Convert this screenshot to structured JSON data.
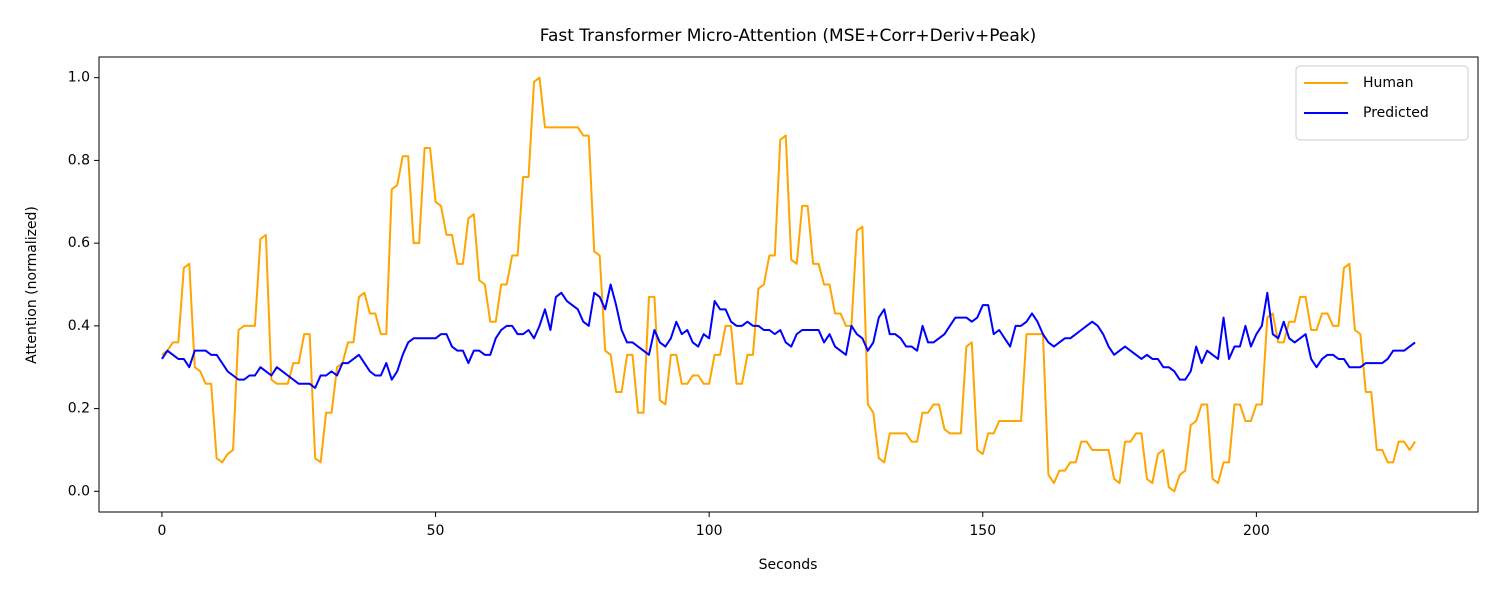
{
  "chart_data": {
    "type": "line",
    "title": "Fast Transformer Micro-Attention (MSE+Corr+Deriv+Peak)",
    "x_label": "Seconds",
    "y_label": "Attention (normalized)",
    "x": [
      0,
      1,
      2,
      3,
      4,
      5,
      6,
      7,
      8,
      9,
      10,
      11,
      12,
      13,
      14,
      15,
      16,
      17,
      18,
      19,
      20,
      21,
      22,
      23,
      24,
      25,
      26,
      27,
      28,
      29,
      30,
      31,
      32,
      33,
      34,
      35,
      36,
      37,
      38,
      39,
      40,
      41,
      42,
      43,
      44,
      45,
      46,
      47,
      48,
      49,
      50,
      51,
      52,
      53,
      54,
      55,
      56,
      57,
      58,
      59,
      60,
      61,
      62,
      63,
      64,
      65,
      66,
      67,
      68,
      69,
      70,
      71,
      72,
      73,
      74,
      75,
      76,
      77,
      78,
      79,
      80,
      81,
      82,
      83,
      84,
      85,
      86,
      87,
      88,
      89,
      90,
      91,
      92,
      93,
      94,
      95,
      96,
      97,
      98,
      99,
      100,
      101,
      102,
      103,
      104,
      105,
      106,
      107,
      108,
      109,
      110,
      111,
      112,
      113,
      114,
      115,
      116,
      117,
      118,
      119,
      120,
      121,
      122,
      123,
      124,
      125,
      126,
      127,
      128,
      129,
      130,
      131,
      132,
      133,
      134,
      135,
      136,
      137,
      138,
      139,
      140,
      141,
      142,
      143,
      144,
      145,
      146,
      147,
      148,
      149,
      150,
      151,
      152,
      153,
      154,
      155,
      156,
      157,
      158,
      159,
      160,
      161,
      162,
      163,
      164,
      165,
      166,
      167,
      168,
      169,
      170,
      171,
      172,
      173,
      174,
      175,
      176,
      177,
      178,
      179,
      180,
      181,
      182,
      183,
      184,
      185,
      186,
      187,
      188,
      189,
      190,
      191,
      192,
      193,
      194,
      195,
      196,
      197,
      198,
      199,
      200,
      201,
      202,
      203,
      204,
      205,
      206,
      207,
      208,
      209,
      210,
      211,
      212,
      213,
      214,
      215,
      216,
      217,
      218,
      219,
      220,
      221,
      222,
      223,
      224,
      225,
      226,
      227,
      228,
      229
    ],
    "series": [
      {
        "name": "Human",
        "color": "#ffa500",
        "values": [
          0.33,
          0.34,
          0.36,
          0.36,
          0.54,
          0.55,
          0.3,
          0.29,
          0.26,
          0.26,
          0.08,
          0.07,
          0.09,
          0.1,
          0.39,
          0.4,
          0.4,
          0.4,
          0.61,
          0.62,
          0.27,
          0.26,
          0.26,
          0.26,
          0.31,
          0.31,
          0.38,
          0.38,
          0.08,
          0.07,
          0.19,
          0.19,
          0.3,
          0.31,
          0.36,
          0.36,
          0.47,
          0.48,
          0.43,
          0.43,
          0.38,
          0.38,
          0.73,
          0.74,
          0.81,
          0.81,
          0.6,
          0.6,
          0.83,
          0.83,
          0.7,
          0.69,
          0.62,
          0.62,
          0.55,
          0.55,
          0.66,
          0.67,
          0.51,
          0.5,
          0.41,
          0.41,
          0.5,
          0.5,
          0.57,
          0.57,
          0.76,
          0.76,
          0.99,
          1.0,
          0.88,
          0.88,
          0.88,
          0.88,
          0.88,
          0.88,
          0.88,
          0.86,
          0.86,
          0.58,
          0.57,
          0.34,
          0.33,
          0.24,
          0.24,
          0.33,
          0.33,
          0.19,
          0.19,
          0.47,
          0.47,
          0.22,
          0.21,
          0.33,
          0.33,
          0.26,
          0.26,
          0.28,
          0.28,
          0.26,
          0.26,
          0.33,
          0.33,
          0.4,
          0.4,
          0.26,
          0.26,
          0.33,
          0.33,
          0.49,
          0.5,
          0.57,
          0.57,
          0.85,
          0.86,
          0.56,
          0.55,
          0.69,
          0.69,
          0.55,
          0.55,
          0.5,
          0.5,
          0.43,
          0.43,
          0.4,
          0.4,
          0.63,
          0.64,
          0.21,
          0.19,
          0.08,
          0.07,
          0.14,
          0.14,
          0.14,
          0.14,
          0.12,
          0.12,
          0.19,
          0.19,
          0.21,
          0.21,
          0.15,
          0.14,
          0.14,
          0.14,
          0.35,
          0.36,
          0.1,
          0.09,
          0.14,
          0.14,
          0.17,
          0.17,
          0.17,
          0.17,
          0.17,
          0.38,
          0.38,
          0.38,
          0.38,
          0.04,
          0.02,
          0.05,
          0.05,
          0.07,
          0.07,
          0.12,
          0.12,
          0.1,
          0.1,
          0.1,
          0.1,
          0.03,
          0.02,
          0.12,
          0.12,
          0.14,
          0.14,
          0.03,
          0.02,
          0.09,
          0.1,
          0.01,
          0.0,
          0.04,
          0.05,
          0.16,
          0.17,
          0.21,
          0.21,
          0.03,
          0.02,
          0.07,
          0.07,
          0.21,
          0.21,
          0.17,
          0.17,
          0.21,
          0.21,
          0.42,
          0.43,
          0.36,
          0.36,
          0.41,
          0.41,
          0.47,
          0.47,
          0.39,
          0.39,
          0.43,
          0.43,
          0.4,
          0.4,
          0.54,
          0.55,
          0.39,
          0.38,
          0.24,
          0.24,
          0.1,
          0.1,
          0.07,
          0.07,
          0.12,
          0.12,
          0.1,
          0.12
        ]
      },
      {
        "name": "Predicted",
        "color": "#0000ff",
        "values": [
          0.32,
          0.34,
          0.33,
          0.32,
          0.32,
          0.3,
          0.34,
          0.34,
          0.34,
          0.33,
          0.33,
          0.31,
          0.29,
          0.28,
          0.27,
          0.27,
          0.28,
          0.28,
          0.3,
          0.29,
          0.28,
          0.3,
          0.29,
          0.28,
          0.27,
          0.26,
          0.26,
          0.26,
          0.25,
          0.28,
          0.28,
          0.29,
          0.28,
          0.31,
          0.31,
          0.32,
          0.33,
          0.31,
          0.29,
          0.28,
          0.28,
          0.31,
          0.27,
          0.29,
          0.33,
          0.36,
          0.37,
          0.37,
          0.37,
          0.37,
          0.37,
          0.38,
          0.38,
          0.35,
          0.34,
          0.34,
          0.31,
          0.34,
          0.34,
          0.33,
          0.33,
          0.37,
          0.39,
          0.4,
          0.4,
          0.38,
          0.38,
          0.39,
          0.37,
          0.4,
          0.44,
          0.39,
          0.47,
          0.48,
          0.46,
          0.45,
          0.44,
          0.41,
          0.4,
          0.48,
          0.47,
          0.44,
          0.5,
          0.45,
          0.39,
          0.36,
          0.36,
          0.35,
          0.34,
          0.33,
          0.39,
          0.36,
          0.35,
          0.37,
          0.41,
          0.38,
          0.39,
          0.36,
          0.35,
          0.38,
          0.37,
          0.46,
          0.44,
          0.44,
          0.41,
          0.4,
          0.4,
          0.41,
          0.4,
          0.4,
          0.39,
          0.39,
          0.38,
          0.39,
          0.36,
          0.35,
          0.38,
          0.39,
          0.39,
          0.39,
          0.39,
          0.36,
          0.38,
          0.35,
          0.34,
          0.33,
          0.4,
          0.38,
          0.37,
          0.34,
          0.36,
          0.42,
          0.44,
          0.38,
          0.38,
          0.37,
          0.35,
          0.35,
          0.34,
          0.4,
          0.36,
          0.36,
          0.37,
          0.38,
          0.4,
          0.42,
          0.42,
          0.42,
          0.41,
          0.42,
          0.45,
          0.45,
          0.38,
          0.39,
          0.37,
          0.35,
          0.4,
          0.4,
          0.41,
          0.43,
          0.41,
          0.38,
          0.36,
          0.35,
          0.36,
          0.37,
          0.37,
          0.38,
          0.39,
          0.4,
          0.41,
          0.4,
          0.38,
          0.35,
          0.33,
          0.34,
          0.35,
          0.34,
          0.33,
          0.32,
          0.33,
          0.32,
          0.32,
          0.3,
          0.3,
          0.29,
          0.27,
          0.27,
          0.29,
          0.35,
          0.31,
          0.34,
          0.33,
          0.32,
          0.42,
          0.32,
          0.35,
          0.35,
          0.4,
          0.35,
          0.38,
          0.4,
          0.48,
          0.38,
          0.37,
          0.41,
          0.37,
          0.36,
          0.37,
          0.38,
          0.32,
          0.3,
          0.32,
          0.33,
          0.33,
          0.32,
          0.32,
          0.3,
          0.3,
          0.3,
          0.31,
          0.31,
          0.31,
          0.31,
          0.32,
          0.34,
          0.34,
          0.34,
          0.35,
          0.36
        ]
      }
    ],
    "xlim": [
      -11.5,
      240.5
    ],
    "ylim": [
      -0.05,
      1.05
    ],
    "xticks": [
      0,
      50,
      100,
      150,
      200
    ],
    "yticks": [
      {
        "value": 0,
        "label": "0.0"
      },
      {
        "value": 0.2,
        "label": "0.2"
      },
      {
        "value": 0.4,
        "label": "0.4"
      },
      {
        "value": 0.6,
        "label": "0.6"
      },
      {
        "value": 0.8,
        "label": "0.8"
      },
      {
        "value": 1,
        "label": "1.0"
      }
    ],
    "grid": false,
    "legend": "upper-right"
  }
}
